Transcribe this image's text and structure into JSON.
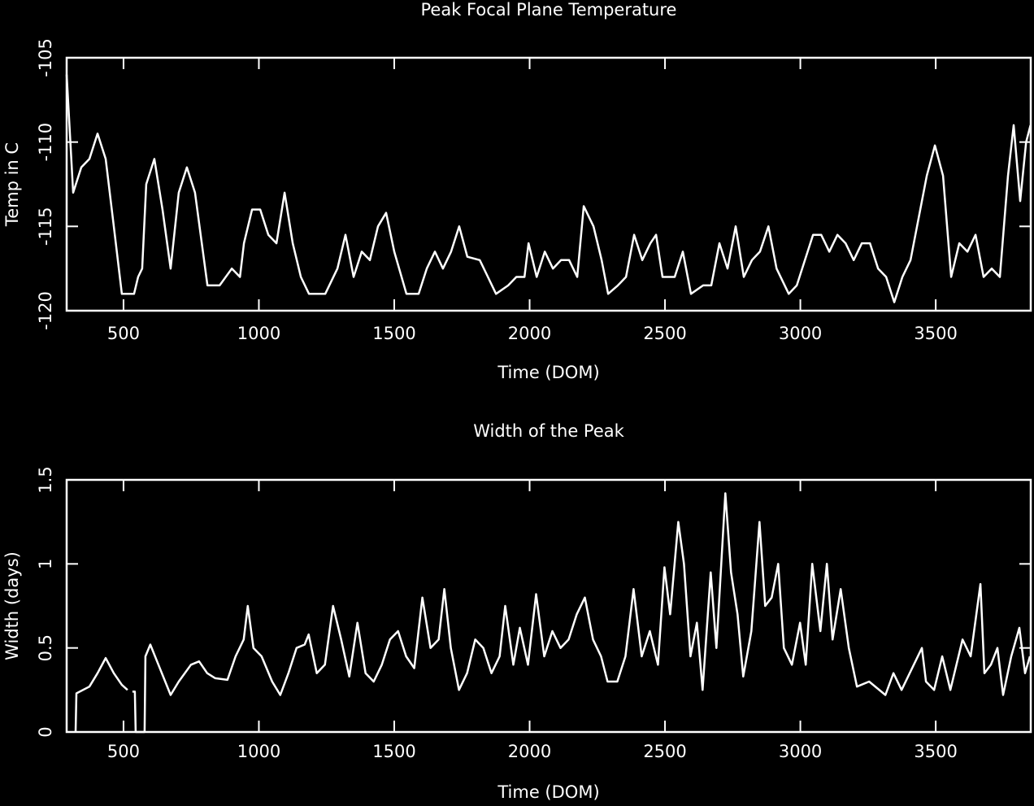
{
  "chart_data": [
    {
      "type": "line",
      "title": "Peak Focal Plane Temperature",
      "x_label": "Time (DOM)",
      "y_label": "Temp in C",
      "color": "#ffffff",
      "xlim": [
        290,
        3851
      ],
      "xticks": [
        500,
        1000,
        1500,
        2000,
        2500,
        3000,
        3500
      ],
      "ylim": [
        -120,
        -105
      ],
      "yticks": [
        -120,
        -115,
        -110,
        -105
      ],
      "x": [
        290,
        314,
        344,
        374,
        404,
        434,
        464,
        494,
        539,
        554,
        569,
        584,
        614,
        644,
        674,
        704,
        734,
        764,
        810,
        855,
        900,
        930,
        945,
        975,
        1005,
        1035,
        1065,
        1095,
        1125,
        1155,
        1185,
        1245,
        1290,
        1320,
        1350,
        1380,
        1410,
        1440,
        1470,
        1500,
        1545,
        1590,
        1620,
        1650,
        1680,
        1710,
        1740,
        1770,
        1816,
        1846,
        1876,
        1921,
        1951,
        1981,
        1996,
        2026,
        2056,
        2086,
        2116,
        2146,
        2176,
        2200,
        2236,
        2266,
        2290,
        2326,
        2356,
        2386,
        2416,
        2446,
        2467,
        2491,
        2536,
        2566,
        2596,
        2641,
        2671,
        2701,
        2731,
        2761,
        2791,
        2821,
        2851,
        2882,
        2912,
        2957,
        2987,
        3017,
        3047,
        3077,
        3107,
        3137,
        3167,
        3197,
        3227,
        3257,
        3287,
        3317,
        3347,
        3377,
        3407,
        3437,
        3467,
        3497,
        3527,
        3557,
        3587,
        3617,
        3647,
        3677,
        3707,
        3737,
        3767,
        3788,
        3812,
        3834,
        3850
      ],
      "values": [
        -106,
        -113,
        -111.5,
        -111,
        -109.5,
        -111,
        -115,
        -119,
        -119,
        -118,
        -117.5,
        -112.5,
        -111,
        -114,
        -117.5,
        -113,
        -111.5,
        -113,
        -118.5,
        -118.5,
        -117.5,
        -118,
        -116,
        -114,
        -114,
        -115.5,
        -116,
        -113,
        -116,
        -118,
        -119,
        -119,
        -117.5,
        -115.5,
        -118,
        -116.5,
        -117,
        -115,
        -114.2,
        -116.5,
        -119,
        -119,
        -117.5,
        -116.5,
        -117.5,
        -116.5,
        -115,
        -116.8,
        -117,
        -118,
        -119,
        -118.5,
        -118,
        -118,
        -116,
        -118,
        -116.5,
        -117.5,
        -117,
        -117,
        -118,
        -113.8,
        -115,
        -117,
        -119,
        -118.5,
        -118,
        -115.5,
        -117,
        -116,
        -115.5,
        -118,
        -118,
        -116.5,
        -119,
        -118.5,
        -118.5,
        -116,
        -117.5,
        -115,
        -118,
        -117,
        -116.5,
        -115,
        -117.5,
        -119,
        -118.5,
        -117,
        -115.5,
        -115.5,
        -116.5,
        -115.5,
        -116,
        -117,
        -116,
        -116,
        -117.5,
        -118,
        -119.5,
        -118,
        -117,
        -114.5,
        -112,
        -110.2,
        -112,
        -118,
        -116,
        -116.5,
        -115.5,
        -118,
        -117.5,
        -118,
        -112,
        -109,
        -113.5,
        -110,
        -109
      ]
    },
    {
      "type": "line",
      "title": "Width of the Peak",
      "x_label": "Time (DOM)",
      "y_label": "Width (days)",
      "color": "#ffffff",
      "xlim": [
        290,
        3851
      ],
      "xticks": [
        500,
        1000,
        1500,
        2000,
        2500,
        3000,
        3500
      ],
      "ylim": [
        0,
        1.5
      ],
      "yticks": [
        0,
        0.5,
        1,
        1.5
      ],
      "x": [
        323,
        326,
        374,
        404,
        434,
        464,
        494,
        515,
        524,
        533,
        542,
        545,
        578,
        581,
        599,
        629,
        674,
        704,
        749,
        779,
        809,
        839,
        884,
        914,
        944,
        959,
        980,
        1010,
        1049,
        1079,
        1109,
        1139,
        1169,
        1184,
        1214,
        1244,
        1274,
        1304,
        1334,
        1364,
        1394,
        1424,
        1454,
        1484,
        1514,
        1544,
        1574,
        1604,
        1634,
        1664,
        1685,
        1709,
        1739,
        1769,
        1799,
        1829,
        1859,
        1889,
        1910,
        1940,
        1964,
        1994,
        2024,
        2054,
        2084,
        2114,
        2144,
        2174,
        2204,
        2234,
        2264,
        2288,
        2324,
        2354,
        2384,
        2414,
        2444,
        2474,
        2498,
        2519,
        2549,
        2570,
        2594,
        2618,
        2639,
        2669,
        2690,
        2723,
        2744,
        2768,
        2789,
        2819,
        2849,
        2870,
        2894,
        2918,
        2939,
        2969,
        2999,
        3020,
        3044,
        3074,
        3098,
        3119,
        3149,
        3179,
        3209,
        3254,
        3314,
        3344,
        3374,
        3404,
        3449,
        3464,
        3494,
        3524,
        3554,
        3599,
        3629,
        3665,
        3680,
        3704,
        3728,
        3749,
        3779,
        3809,
        3830,
        3848
      ],
      "values": [
        0,
        0.23,
        0.27,
        0.35,
        0.44,
        0.35,
        0.28,
        0.25,
        null,
        0.24,
        0.24,
        0,
        0,
        0.45,
        0.52,
        0.4,
        0.22,
        0.3,
        0.4,
        0.42,
        0.35,
        0.32,
        0.31,
        0.45,
        0.55,
        0.75,
        0.5,
        0.45,
        0.3,
        0.22,
        0.35,
        0.5,
        0.52,
        0.58,
        0.35,
        0.4,
        0.75,
        0.55,
        0.33,
        0.65,
        0.35,
        0.3,
        0.4,
        0.55,
        0.6,
        0.45,
        0.38,
        0.8,
        0.5,
        0.55,
        0.85,
        0.5,
        0.25,
        0.35,
        0.55,
        0.5,
        0.35,
        0.45,
        0.75,
        0.4,
        0.62,
        0.4,
        0.82,
        0.45,
        0.6,
        0.5,
        0.55,
        0.7,
        0.8,
        0.55,
        0.45,
        0.3,
        0.3,
        0.45,
        0.85,
        0.45,
        0.6,
        0.4,
        0.98,
        0.7,
        1.25,
        1,
        0.45,
        0.65,
        0.25,
        0.95,
        0.5,
        1.42,
        0.95,
        0.7,
        0.33,
        0.6,
        1.25,
        0.75,
        0.8,
        1,
        0.5,
        0.4,
        0.65,
        0.4,
        1,
        0.6,
        1,
        0.55,
        0.85,
        0.5,
        0.27,
        0.3,
        0.22,
        0.35,
        0.25,
        0.35,
        0.5,
        0.3,
        0.25,
        0.45,
        0.25,
        0.55,
        0.45,
        0.88,
        0.35,
        0.4,
        0.5,
        0.22,
        0.45,
        0.62,
        0.35,
        0.45
      ]
    }
  ]
}
